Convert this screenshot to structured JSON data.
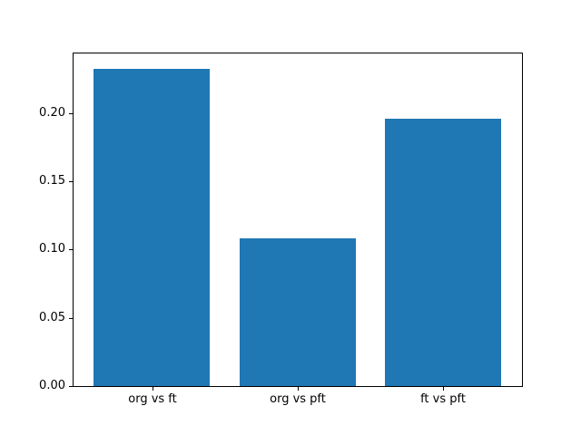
{
  "chart_data": {
    "type": "bar",
    "categories": [
      "org vs ft",
      "org vs pft",
      "ft vs pft"
    ],
    "values": [
      0.232,
      0.108,
      0.196
    ],
    "title": "",
    "xlabel": "",
    "ylabel": "",
    "ylim": [
      0,
      0.2436
    ],
    "yticks": [
      0.0,
      0.05,
      0.1,
      0.15,
      0.2
    ],
    "ytick_labels": [
      "0.00",
      "0.05",
      "0.10",
      "0.15",
      "0.20"
    ],
    "grid": false,
    "legend": "none",
    "bar_color": "#1f77b4",
    "background_color": "#ffffff",
    "axis_color": "#000000"
  }
}
